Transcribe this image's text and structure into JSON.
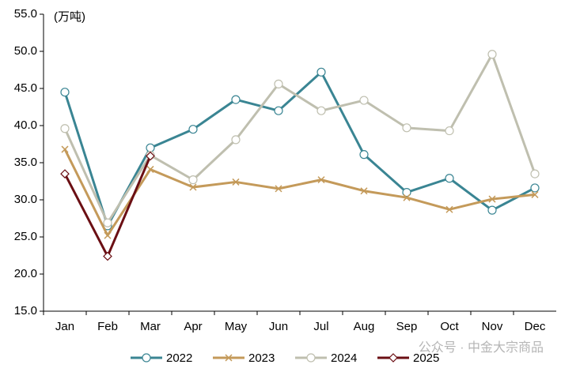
{
  "chart_data": {
    "type": "line",
    "y_label": "(万吨)",
    "categories": [
      "Jan",
      "Feb",
      "Mar",
      "Apr",
      "May",
      "Jun",
      "Jul",
      "Aug",
      "Sep",
      "Oct",
      "Nov",
      "Dec"
    ],
    "series": [
      {
        "name": "2022",
        "color": "#3a8593",
        "marker": "circle",
        "values": [
          44.5,
          26.5,
          37.0,
          39.5,
          43.5,
          42.0,
          47.2,
          36.1,
          31.0,
          32.9,
          28.6,
          31.6
        ]
      },
      {
        "name": "2023",
        "color": "#c49a5a",
        "marker": "x",
        "values": [
          36.8,
          25.2,
          34.1,
          31.7,
          32.4,
          31.5,
          32.7,
          31.2,
          30.3,
          28.7,
          30.1,
          30.7
        ]
      },
      {
        "name": "2024",
        "color": "#bfbfaf",
        "marker": "circle",
        "values": [
          39.6,
          26.9,
          36.0,
          32.7,
          38.1,
          45.6,
          42.0,
          43.4,
          39.7,
          39.3,
          49.6,
          33.5
        ]
      },
      {
        "name": "2025",
        "color": "#6b0f14",
        "marker": "diamond",
        "values": [
          33.5,
          22.4,
          35.9,
          null,
          null,
          null,
          null,
          null,
          null,
          null,
          null,
          null
        ]
      }
    ],
    "ylim": [
      15,
      55
    ],
    "yticks": [
      {
        "value": 15,
        "label": "15.0"
      },
      {
        "value": 20,
        "label": "20.0"
      },
      {
        "value": 25,
        "label": "25.0"
      },
      {
        "value": 30,
        "label": "30.0"
      },
      {
        "value": 35,
        "label": "35.0"
      },
      {
        "value": 40,
        "label": "40.0"
      },
      {
        "value": 45,
        "label": "45.0"
      },
      {
        "value": 50,
        "label": "50.0"
      },
      {
        "value": 55,
        "label": "55.0"
      }
    ],
    "legend": "bottom",
    "watermark": "公众号 · 中金大宗商品"
  }
}
